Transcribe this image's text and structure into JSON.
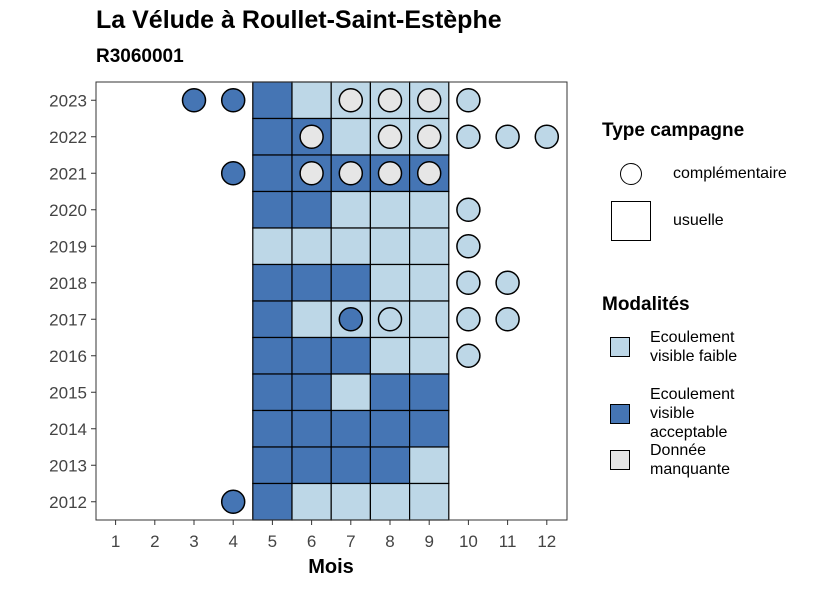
{
  "title": "La Vélude à Roullet-Saint-Estèphe",
  "subtitle": "R3060001",
  "colors": {
    "Ecoulement visible faible": "#bdd7e7",
    "Ecoulement visible acceptable": "#4575b4",
    "Donnée manquante": "#e6e6e6"
  },
  "legend_type": {
    "title": "Type campagne",
    "items": [
      "complémentaire",
      "usuelle"
    ]
  },
  "legend_modalites": {
    "title": "Modalités",
    "items": [
      "Ecoulement visible faible",
      "Ecoulement visible acceptable",
      "Donnée manquante"
    ]
  },
  "chart_data": {
    "type": "heatmap",
    "title": "La Vélude à Roullet-Saint-Estèphe",
    "subtitle": "R3060001",
    "xlabel": "Mois",
    "ylabel": "",
    "x_ticks": [
      1,
      2,
      3,
      4,
      5,
      6,
      7,
      8,
      9,
      10,
      11,
      12
    ],
    "y_ticks": [
      2012,
      2013,
      2014,
      2015,
      2016,
      2017,
      2018,
      2019,
      2020,
      2021,
      2022,
      2023
    ],
    "usuelle": [
      {
        "year": 2023,
        "months": [
          5,
          6,
          7,
          8,
          9
        ],
        "values": [
          "Ecoulement visible acceptable",
          "Ecoulement visible faible",
          "Ecoulement visible faible",
          "Ecoulement visible faible",
          "Ecoulement visible faible"
        ]
      },
      {
        "year": 2022,
        "months": [
          5,
          6,
          7,
          8,
          9
        ],
        "values": [
          "Ecoulement visible acceptable",
          "Ecoulement visible acceptable",
          "Ecoulement visible faible",
          "Ecoulement visible faible",
          "Ecoulement visible faible"
        ]
      },
      {
        "year": 2021,
        "months": [
          5,
          6,
          7,
          8,
          9
        ],
        "values": [
          "Ecoulement visible acceptable",
          "Ecoulement visible acceptable",
          "Ecoulement visible acceptable",
          "Ecoulement visible acceptable",
          "Ecoulement visible acceptable"
        ]
      },
      {
        "year": 2020,
        "months": [
          5,
          6,
          7,
          8,
          9
        ],
        "values": [
          "Ecoulement visible acceptable",
          "Ecoulement visible acceptable",
          "Ecoulement visible faible",
          "Ecoulement visible faible",
          "Ecoulement visible faible"
        ]
      },
      {
        "year": 2019,
        "months": [
          5,
          6,
          7,
          8,
          9
        ],
        "values": [
          "Ecoulement visible faible",
          "Ecoulement visible faible",
          "Ecoulement visible faible",
          "Ecoulement visible faible",
          "Ecoulement visible faible"
        ]
      },
      {
        "year": 2018,
        "months": [
          5,
          6,
          7,
          8,
          9
        ],
        "values": [
          "Ecoulement visible acceptable",
          "Ecoulement visible acceptable",
          "Ecoulement visible acceptable",
          "Ecoulement visible faible",
          "Ecoulement visible faible"
        ]
      },
      {
        "year": 2017,
        "months": [
          5,
          6,
          7,
          8,
          9
        ],
        "values": [
          "Ecoulement visible acceptable",
          "Ecoulement visible faible",
          "Ecoulement visible faible",
          "Ecoulement visible faible",
          "Ecoulement visible faible"
        ]
      },
      {
        "year": 2016,
        "months": [
          5,
          6,
          7,
          8,
          9
        ],
        "values": [
          "Ecoulement visible acceptable",
          "Ecoulement visible acceptable",
          "Ecoulement visible acceptable",
          "Ecoulement visible faible",
          "Ecoulement visible faible"
        ]
      },
      {
        "year": 2015,
        "months": [
          5,
          6,
          7,
          8,
          9
        ],
        "values": [
          "Ecoulement visible acceptable",
          "Ecoulement visible acceptable",
          "Ecoulement visible faible",
          "Ecoulement visible acceptable",
          "Ecoulement visible acceptable"
        ]
      },
      {
        "year": 2014,
        "months": [
          5,
          6,
          7,
          8,
          9
        ],
        "values": [
          "Ecoulement visible acceptable",
          "Ecoulement visible acceptable",
          "Ecoulement visible acceptable",
          "Ecoulement visible acceptable",
          "Ecoulement visible acceptable"
        ]
      },
      {
        "year": 2013,
        "months": [
          5,
          6,
          7,
          8,
          9
        ],
        "values": [
          "Ecoulement visible acceptable",
          "Ecoulement visible acceptable",
          "Ecoulement visible acceptable",
          "Ecoulement visible acceptable",
          "Ecoulement visible faible"
        ]
      },
      {
        "year": 2012,
        "months": [
          5,
          6,
          7,
          8,
          9
        ],
        "values": [
          "Ecoulement visible acceptable",
          "Ecoulement visible faible",
          "Ecoulement visible faible",
          "Ecoulement visible faible",
          "Ecoulement visible faible"
        ]
      }
    ],
    "complementaire": [
      {
        "year": 2023,
        "month": 3,
        "value": "Ecoulement visible acceptable"
      },
      {
        "year": 2023,
        "month": 4,
        "value": "Ecoulement visible acceptable"
      },
      {
        "year": 2023,
        "month": 7,
        "value": "Donnée manquante"
      },
      {
        "year": 2023,
        "month": 8,
        "value": "Donnée manquante"
      },
      {
        "year": 2023,
        "month": 9,
        "value": "Donnée manquante"
      },
      {
        "year": 2023,
        "month": 10,
        "value": "Ecoulement visible faible"
      },
      {
        "year": 2022,
        "month": 6,
        "value": "Donnée manquante"
      },
      {
        "year": 2022,
        "month": 8,
        "value": "Donnée manquante"
      },
      {
        "year": 2022,
        "month": 9,
        "value": "Donnée manquante"
      },
      {
        "year": 2022,
        "month": 10,
        "value": "Ecoulement visible faible"
      },
      {
        "year": 2022,
        "month": 11,
        "value": "Ecoulement visible faible"
      },
      {
        "year": 2022,
        "month": 12,
        "value": "Ecoulement visible faible"
      },
      {
        "year": 2021,
        "month": 4,
        "value": "Ecoulement visible acceptable"
      },
      {
        "year": 2021,
        "month": 6,
        "value": "Donnée manquante"
      },
      {
        "year": 2021,
        "month": 7,
        "value": "Donnée manquante"
      },
      {
        "year": 2021,
        "month": 8,
        "value": "Donnée manquante"
      },
      {
        "year": 2021,
        "month": 9,
        "value": "Donnée manquante"
      },
      {
        "year": 2020,
        "month": 10,
        "value": "Ecoulement visible faible"
      },
      {
        "year": 2019,
        "month": 10,
        "value": "Ecoulement visible faible"
      },
      {
        "year": 2018,
        "month": 10,
        "value": "Ecoulement visible faible"
      },
      {
        "year": 2018,
        "month": 11,
        "value": "Ecoulement visible faible"
      },
      {
        "year": 2017,
        "month": 7,
        "value": "Ecoulement visible acceptable"
      },
      {
        "year": 2017,
        "month": 8,
        "value": "Ecoulement visible faible"
      },
      {
        "year": 2017,
        "month": 10,
        "value": "Ecoulement visible faible"
      },
      {
        "year": 2017,
        "month": 11,
        "value": "Ecoulement visible faible"
      },
      {
        "year": 2016,
        "month": 10,
        "value": "Ecoulement visible faible"
      },
      {
        "year": 2012,
        "month": 4,
        "value": "Ecoulement visible acceptable"
      }
    ]
  }
}
